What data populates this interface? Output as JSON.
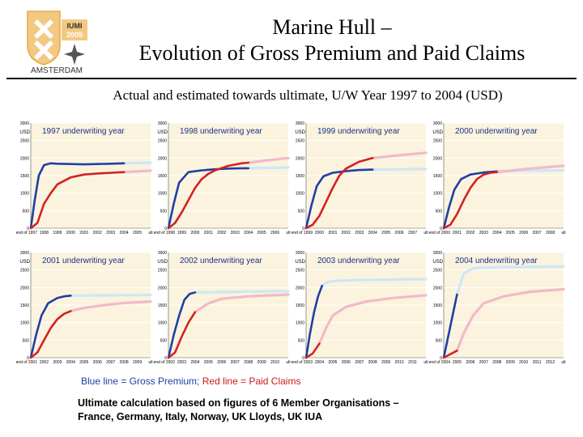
{
  "header": {
    "title_line1": "Marine Hull –",
    "title_line2": "Evolution of Gross Premium and Paid Claims",
    "subtitle": "Actual and estimated towards ultimate, U/W Year 1997 to 2004 (USD)"
  },
  "logo": {
    "badge_line1": "IUMI",
    "badge_line2": "2005",
    "city": "AMSTERDAM"
  },
  "legend": {
    "blue_text": "Blue line = Gross Premium;",
    "red_text": "Red line = Paid Claims"
  },
  "note": {
    "line1": "Ultimate calculation based on figures of 6 Member Organisations –",
    "line2": "France, Germany, Italy, Norway, UK Lloyds, UK IUA"
  },
  "colors": {
    "panel_bg": "#fbf3dd",
    "grid": "#ffffff",
    "premium_actual": "#1f3fa6",
    "premium_estimate": "#cde7f5",
    "claims_actual": "#d32222",
    "claims_estimate": "#f2b9c9"
  },
  "chart_data": [
    {
      "type": "line",
      "title": "1997 underwriting year",
      "ylabel": "USD",
      "xlabel": "ult",
      "ylim": [
        0,
        3000
      ],
      "yticks": [
        0,
        500,
        1000,
        1500,
        2000,
        2500,
        3000
      ],
      "categories": [
        "end of 1997",
        "1998",
        "1999",
        "2000",
        "2001",
        "2002",
        "2003",
        "2004",
        "2005",
        "ult"
      ],
      "series": [
        {
          "name": "Gross Premium",
          "actual": [
            [
              0,
              0
            ],
            [
              0.3,
              800
            ],
            [
              0.6,
              1500
            ],
            [
              1,
              1800
            ],
            [
              1.5,
              1850
            ],
            [
              2,
              1840
            ],
            [
              3,
              1830
            ],
            [
              4,
              1820
            ],
            [
              5,
              1830
            ],
            [
              6,
              1840
            ],
            [
              7,
              1850
            ]
          ],
          "estimate": [
            [
              7,
              1850
            ],
            [
              8,
              1860
            ],
            [
              9,
              1870
            ]
          ]
        },
        {
          "name": "Paid Claims",
          "actual": [
            [
              0,
              0
            ],
            [
              0.5,
              150
            ],
            [
              1,
              700
            ],
            [
              1.5,
              1000
            ],
            [
              2,
              1250
            ],
            [
              3,
              1450
            ],
            [
              4,
              1530
            ],
            [
              5,
              1560
            ],
            [
              6,
              1580
            ],
            [
              7,
              1600
            ]
          ],
          "estimate": [
            [
              7,
              1600
            ],
            [
              8,
              1620
            ],
            [
              9,
              1640
            ]
          ]
        }
      ]
    },
    {
      "type": "line",
      "title": "1998 underwriting year",
      "ylabel": "USD",
      "xlabel": "ult",
      "ylim": [
        0,
        3000
      ],
      "yticks": [
        0,
        500,
        1000,
        1500,
        2000,
        2500,
        3000
      ],
      "categories": [
        "end of 1998",
        "1999",
        "2000",
        "2001",
        "2002",
        "2003",
        "2004",
        "2005",
        "2006",
        "ult"
      ],
      "series": [
        {
          "name": "Gross Premium",
          "actual": [
            [
              0,
              0
            ],
            [
              0.4,
              700
            ],
            [
              0.8,
              1300
            ],
            [
              1.5,
              1600
            ],
            [
              2.5,
              1650
            ],
            [
              3.5,
              1680
            ],
            [
              4.5,
              1700
            ],
            [
              5.5,
              1710
            ],
            [
              6,
              1710
            ]
          ],
          "estimate": [
            [
              6,
              1710
            ],
            [
              7.5,
              1720
            ],
            [
              9,
              1730
            ]
          ]
        },
        {
          "name": "Paid Claims",
          "actual": [
            [
              0,
              0
            ],
            [
              0.5,
              150
            ],
            [
              1,
              450
            ],
            [
              1.5,
              800
            ],
            [
              2,
              1150
            ],
            [
              2.5,
              1400
            ],
            [
              3,
              1550
            ],
            [
              3.5,
              1650
            ],
            [
              4.5,
              1780
            ],
            [
              5.5,
              1850
            ],
            [
              6,
              1870
            ]
          ],
          "estimate": [
            [
              6,
              1870
            ],
            [
              7.5,
              1940
            ],
            [
              9,
              2000
            ]
          ]
        }
      ]
    },
    {
      "type": "line",
      "title": "1999 underwriting year",
      "ylabel": "USD",
      "xlabel": "ult",
      "ylim": [
        0,
        3000
      ],
      "yticks": [
        0,
        500,
        1000,
        1500,
        2000,
        2500,
        3000
      ],
      "categories": [
        "end of 1999",
        "2000",
        "2001",
        "2002",
        "2003",
        "2004",
        "2005",
        "2006",
        "2007",
        "ult"
      ],
      "series": [
        {
          "name": "Gross Premium",
          "actual": [
            [
              0,
              0
            ],
            [
              0.4,
              650
            ],
            [
              0.8,
              1200
            ],
            [
              1.3,
              1480
            ],
            [
              2,
              1580
            ],
            [
              3,
              1630
            ],
            [
              4,
              1660
            ],
            [
              5,
              1670
            ]
          ],
          "estimate": [
            [
              5,
              1670
            ],
            [
              7,
              1680
            ],
            [
              9,
              1690
            ]
          ]
        },
        {
          "name": "Paid Claims",
          "actual": [
            [
              0,
              0
            ],
            [
              0.5,
              100
            ],
            [
              1,
              350
            ],
            [
              1.5,
              750
            ],
            [
              2,
              1150
            ],
            [
              2.5,
              1500
            ],
            [
              3,
              1700
            ],
            [
              4,
              1900
            ],
            [
              5,
              2000
            ]
          ],
          "estimate": [
            [
              5,
              2000
            ],
            [
              7,
              2080
            ],
            [
              9,
              2150
            ]
          ]
        }
      ]
    },
    {
      "type": "line",
      "title": "2000 underwriting year",
      "ylabel": "USD",
      "xlabel": "ult",
      "ylim": [
        0,
        3000
      ],
      "yticks": [
        0,
        500,
        1000,
        1500,
        2000,
        2500,
        3000
      ],
      "categories": [
        "end of 2000",
        "2001",
        "2002",
        "2003",
        "2004",
        "2005",
        "2006",
        "2007",
        "2008",
        "ult"
      ],
      "series": [
        {
          "name": "Gross Premium",
          "actual": [
            [
              0,
              0
            ],
            [
              0.4,
              600
            ],
            [
              0.8,
              1100
            ],
            [
              1.3,
              1400
            ],
            [
              2,
              1530
            ],
            [
              3,
              1590
            ],
            [
              4,
              1620
            ]
          ],
          "estimate": [
            [
              4,
              1620
            ],
            [
              6.5,
              1640
            ],
            [
              9,
              1650
            ]
          ]
        },
        {
          "name": "Paid Claims",
          "actual": [
            [
              0,
              0
            ],
            [
              0.5,
              100
            ],
            [
              1,
              400
            ],
            [
              1.5,
              800
            ],
            [
              2,
              1150
            ],
            [
              2.5,
              1400
            ],
            [
              3,
              1530
            ],
            [
              3.5,
              1580
            ],
            [
              4,
              1600
            ]
          ],
          "estimate": [
            [
              4,
              1600
            ],
            [
              6.5,
              1700
            ],
            [
              9,
              1780
            ]
          ]
        }
      ]
    },
    {
      "type": "line",
      "title": "2001 underwriting year",
      "ylabel": "USD",
      "xlabel": "ult",
      "ylim": [
        0,
        3000
      ],
      "yticks": [
        0,
        500,
        1000,
        1500,
        2000,
        2500,
        3000
      ],
      "categories": [
        "end of 2001",
        "2002",
        "2003",
        "2004",
        "2005",
        "2006",
        "2007",
        "2008",
        "2009",
        "ult"
      ],
      "series": [
        {
          "name": "Gross Premium",
          "actual": [
            [
              0,
              0
            ],
            [
              0.4,
              650
            ],
            [
              0.8,
              1200
            ],
            [
              1.3,
              1550
            ],
            [
              2,
              1700
            ],
            [
              2.5,
              1750
            ],
            [
              3,
              1770
            ]
          ],
          "estimate": [
            [
              3,
              1770
            ],
            [
              6,
              1780
            ],
            [
              9,
              1790
            ]
          ]
        },
        {
          "name": "Paid Claims",
          "actual": [
            [
              0,
              0
            ],
            [
              0.5,
              150
            ],
            [
              1,
              500
            ],
            [
              1.5,
              850
            ],
            [
              2,
              1100
            ],
            [
              2.5,
              1250
            ],
            [
              3,
              1330
            ]
          ],
          "estimate": [
            [
              3,
              1330
            ],
            [
              4,
              1420
            ],
            [
              5.5,
              1500
            ],
            [
              7,
              1560
            ],
            [
              9,
              1600
            ]
          ]
        }
      ]
    },
    {
      "type": "line",
      "title": "2002 underwriting year",
      "ylabel": "USD",
      "xlabel": "ult",
      "ylim": [
        0,
        3000
      ],
      "yticks": [
        0,
        500,
        1000,
        1500,
        2000,
        2500,
        3000
      ],
      "categories": [
        "end of 2002",
        "2003",
        "2004",
        "2005",
        "2006",
        "2007",
        "2008",
        "2009",
        "2010",
        "ult"
      ],
      "series": [
        {
          "name": "Gross Premium",
          "actual": [
            [
              0,
              0
            ],
            [
              0.4,
              650
            ],
            [
              0.8,
              1200
            ],
            [
              1.2,
              1650
            ],
            [
              1.6,
              1820
            ],
            [
              2,
              1860
            ]
          ],
          "estimate": [
            [
              2,
              1860
            ],
            [
              5.5,
              1880
            ],
            [
              9,
              1900
            ]
          ]
        },
        {
          "name": "Paid Claims",
          "actual": [
            [
              0,
              0
            ],
            [
              0.5,
              150
            ],
            [
              1,
              600
            ],
            [
              1.5,
              1000
            ],
            [
              2,
              1300
            ]
          ],
          "estimate": [
            [
              2,
              1300
            ],
            [
              3,
              1550
            ],
            [
              4,
              1680
            ],
            [
              6,
              1750
            ],
            [
              9,
              1800
            ]
          ]
        }
      ]
    },
    {
      "type": "line",
      "title": "2003 underwriting year",
      "ylabel": "USD",
      "xlabel": "ult",
      "ylim": [
        0,
        3000
      ],
      "yticks": [
        0,
        500,
        1000,
        1500,
        2000,
        2500,
        3000
      ],
      "categories": [
        "end of 2003",
        "2004",
        "2005",
        "2006",
        "2007",
        "2008",
        "2009",
        "2010",
        "2011",
        "ult"
      ],
      "series": [
        {
          "name": "Gross Premium",
          "actual": [
            [
              0,
              0
            ],
            [
              0.3,
              700
            ],
            [
              0.6,
              1300
            ],
            [
              0.9,
              1750
            ],
            [
              1.2,
              2050
            ]
          ],
          "estimate": [
            [
              1.2,
              2050
            ],
            [
              1.6,
              2160
            ],
            [
              2.5,
              2200
            ],
            [
              5,
              2220
            ],
            [
              9,
              2240
            ]
          ]
        },
        {
          "name": "Paid Claims",
          "actual": [
            [
              0,
              0
            ],
            [
              0.5,
              120
            ],
            [
              1,
              400
            ]
          ],
          "estimate": [
            [
              1,
              400
            ],
            [
              1.5,
              850
            ],
            [
              2,
              1200
            ],
            [
              3,
              1450
            ],
            [
              4.5,
              1600
            ],
            [
              6.5,
              1700
            ],
            [
              9,
              1780
            ]
          ]
        }
      ]
    },
    {
      "type": "line",
      "title": "2004 underwriting year",
      "ylabel": "USD",
      "xlabel": "ult",
      "ylim": [
        0,
        3000
      ],
      "yticks": [
        0,
        500,
        1000,
        1500,
        2000,
        2500,
        3000
      ],
      "categories": [
        "end of 2004",
        "2005",
        "2006",
        "2007",
        "2008",
        "2009",
        "2010",
        "2011",
        "2012",
        "ult"
      ],
      "series": [
        {
          "name": "Gross Premium",
          "actual": [
            [
              0,
              0
            ],
            [
              1,
              1800
            ]
          ],
          "estimate": [
            [
              1,
              1800
            ],
            [
              1.5,
              2400
            ],
            [
              2.2,
              2550
            ],
            [
              4,
              2580
            ],
            [
              9,
              2600
            ]
          ]
        },
        {
          "name": "Paid Claims",
          "actual": [
            [
              0,
              0
            ],
            [
              1,
              200
            ]
          ],
          "estimate": [
            [
              1,
              200
            ],
            [
              1.5,
              700
            ],
            [
              2.2,
              1200
            ],
            [
              3,
              1550
            ],
            [
              4.5,
              1750
            ],
            [
              6.5,
              1880
            ],
            [
              9,
              1950
            ]
          ]
        }
      ]
    }
  ]
}
